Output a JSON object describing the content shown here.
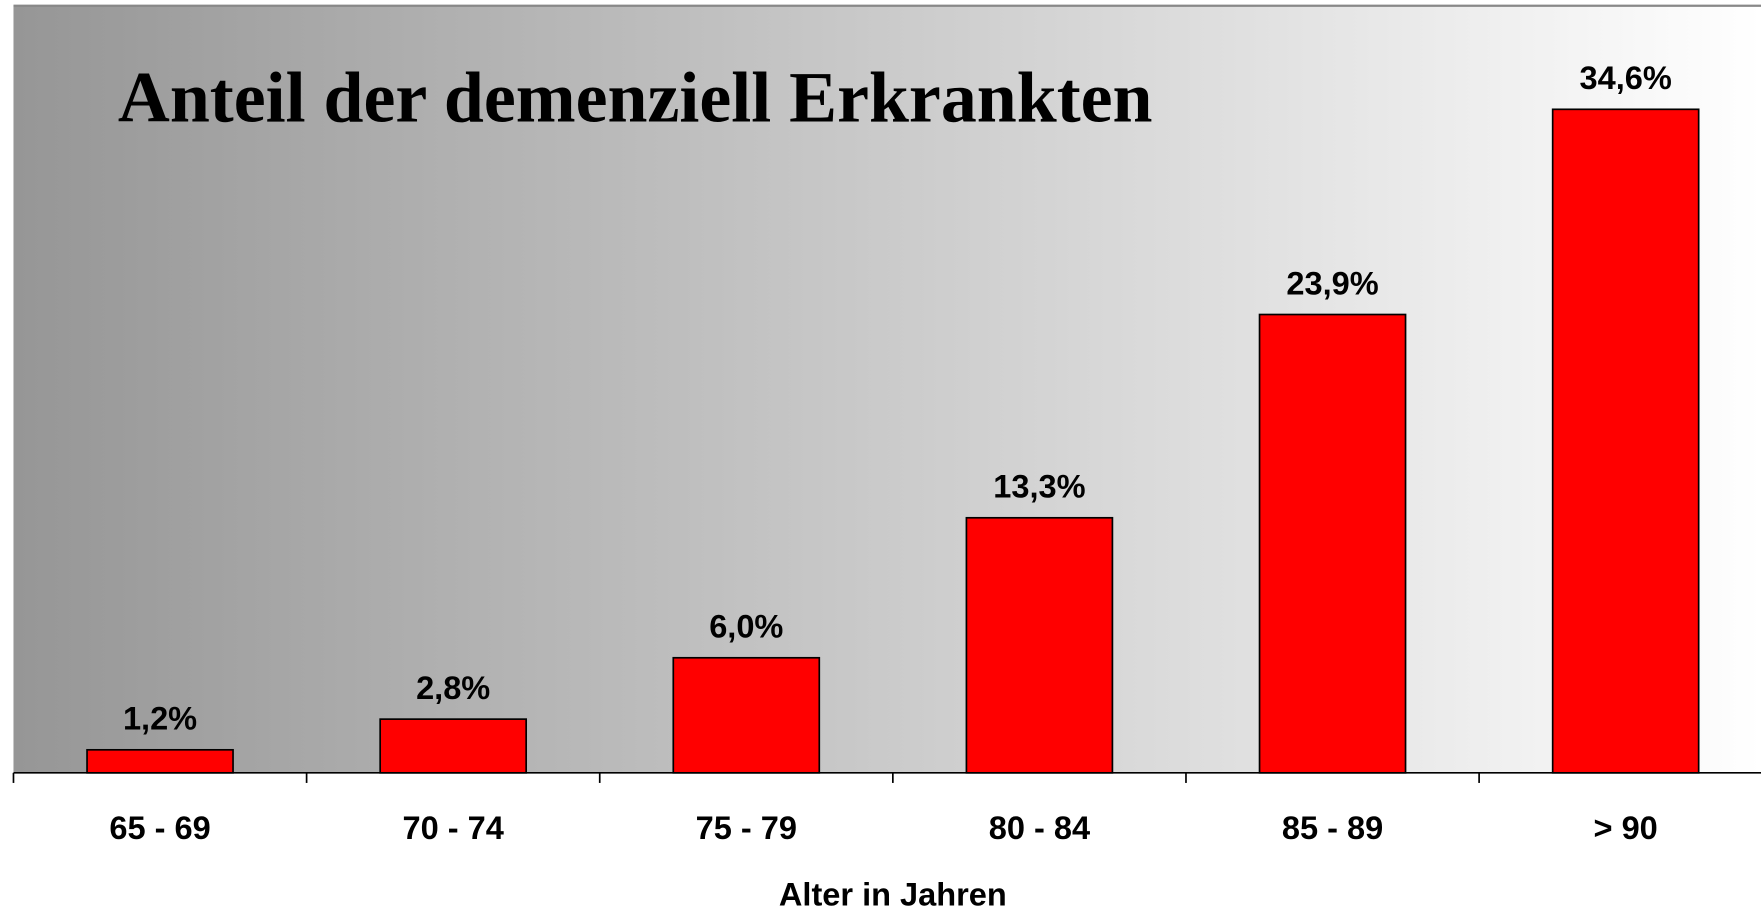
{
  "chart_data": {
    "type": "bar",
    "title": "Anteil der demenziell Erkrankten",
    "xlabel": "Alter in Jahren",
    "categories": [
      "65 - 69",
      "70 - 74",
      "75 - 79",
      "80 - 84",
      "85 - 89",
      "> 90"
    ],
    "values": [
      1.2,
      2.8,
      6.0,
      13.3,
      23.9,
      34.6
    ],
    "value_labels": [
      "1,2%",
      "2,8%",
      "6,0%",
      "13,3%",
      "23,9%",
      "34,6%"
    ],
    "color": "#ff0000",
    "ylim": [
      0,
      40
    ]
  }
}
